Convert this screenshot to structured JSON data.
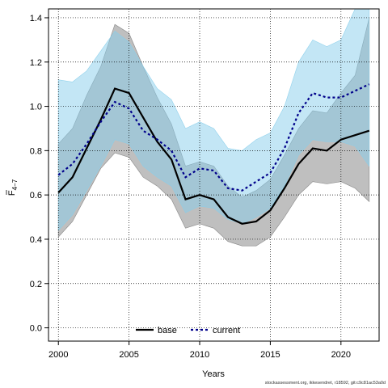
{
  "chart_data": {
    "type": "line",
    "xlabel": "Years",
    "ylabel_main": "F",
    "ylabel_sub": "4−7",
    "xlim": [
      1999.3,
      2022.7
    ],
    "ylim": [
      -0.06,
      1.44
    ],
    "x_ticks": [
      2000,
      2005,
      2010,
      2015,
      2020
    ],
    "y_ticks": [
      0.0,
      0.2,
      0.4,
      0.6,
      0.8,
      1.0,
      1.2,
      1.4
    ],
    "y_tick_labels": [
      "0.0",
      "0.2",
      "0.4",
      "0.6",
      "0.8",
      "1.0",
      "1.2",
      "1.4"
    ],
    "grid": true,
    "legend_placement": "bottom-center",
    "x": [
      2000,
      2001,
      2002,
      2003,
      2004,
      2005,
      2006,
      2007,
      2008,
      2009,
      2010,
      2011,
      2012,
      2013,
      2014,
      2015,
      2016,
      2017,
      2018,
      2019,
      2020,
      2021,
      2022
    ],
    "series": [
      {
        "name": "base",
        "color": "#000000",
        "style": "solid",
        "band_color": "#808080",
        "values": [
          0.61,
          0.68,
          0.81,
          0.94,
          1.08,
          1.06,
          0.95,
          0.84,
          0.76,
          0.58,
          0.6,
          0.58,
          0.5,
          0.47,
          0.48,
          0.53,
          0.63,
          0.74,
          0.81,
          0.8,
          0.85,
          0.87,
          0.89
        ],
        "lower": [
          0.41,
          0.48,
          0.6,
          0.72,
          0.79,
          0.77,
          0.68,
          0.64,
          0.58,
          0.45,
          0.47,
          0.45,
          0.39,
          0.37,
          0.37,
          0.41,
          0.5,
          0.6,
          0.66,
          0.65,
          0.66,
          0.63,
          0.57
        ],
        "upper": [
          0.83,
          0.9,
          1.05,
          1.18,
          1.37,
          1.33,
          1.18,
          1.04,
          0.92,
          0.73,
          0.75,
          0.73,
          0.64,
          0.59,
          0.62,
          0.67,
          0.78,
          0.9,
          0.98,
          0.97,
          1.06,
          1.14,
          1.4
        ]
      },
      {
        "name": "current",
        "color": "#00008b",
        "style": "dashed",
        "band_color": "#87ceeb",
        "values": [
          0.69,
          0.74,
          0.83,
          0.93,
          1.02,
          0.99,
          0.89,
          0.85,
          0.8,
          0.68,
          0.72,
          0.71,
          0.63,
          0.62,
          0.66,
          0.7,
          0.81,
          0.97,
          1.06,
          1.04,
          1.04,
          1.07,
          1.1
        ],
        "lower": [
          0.44,
          0.51,
          0.62,
          0.73,
          0.85,
          0.83,
          0.73,
          0.68,
          0.64,
          0.52,
          0.55,
          0.54,
          0.49,
          0.47,
          0.5,
          0.54,
          0.64,
          0.78,
          0.85,
          0.84,
          0.84,
          0.82,
          0.73
        ],
        "upper": [
          1.12,
          1.11,
          1.16,
          1.25,
          1.34,
          1.29,
          1.18,
          1.08,
          1.03,
          0.9,
          0.93,
          0.9,
          0.81,
          0.8,
          0.85,
          0.88,
          1.0,
          1.2,
          1.3,
          1.27,
          1.3,
          1.44,
          1.44
        ]
      }
    ]
  },
  "footer_text": "stockassessment.org, ikkesendret, r18592, git:c9c81ac53a0d"
}
